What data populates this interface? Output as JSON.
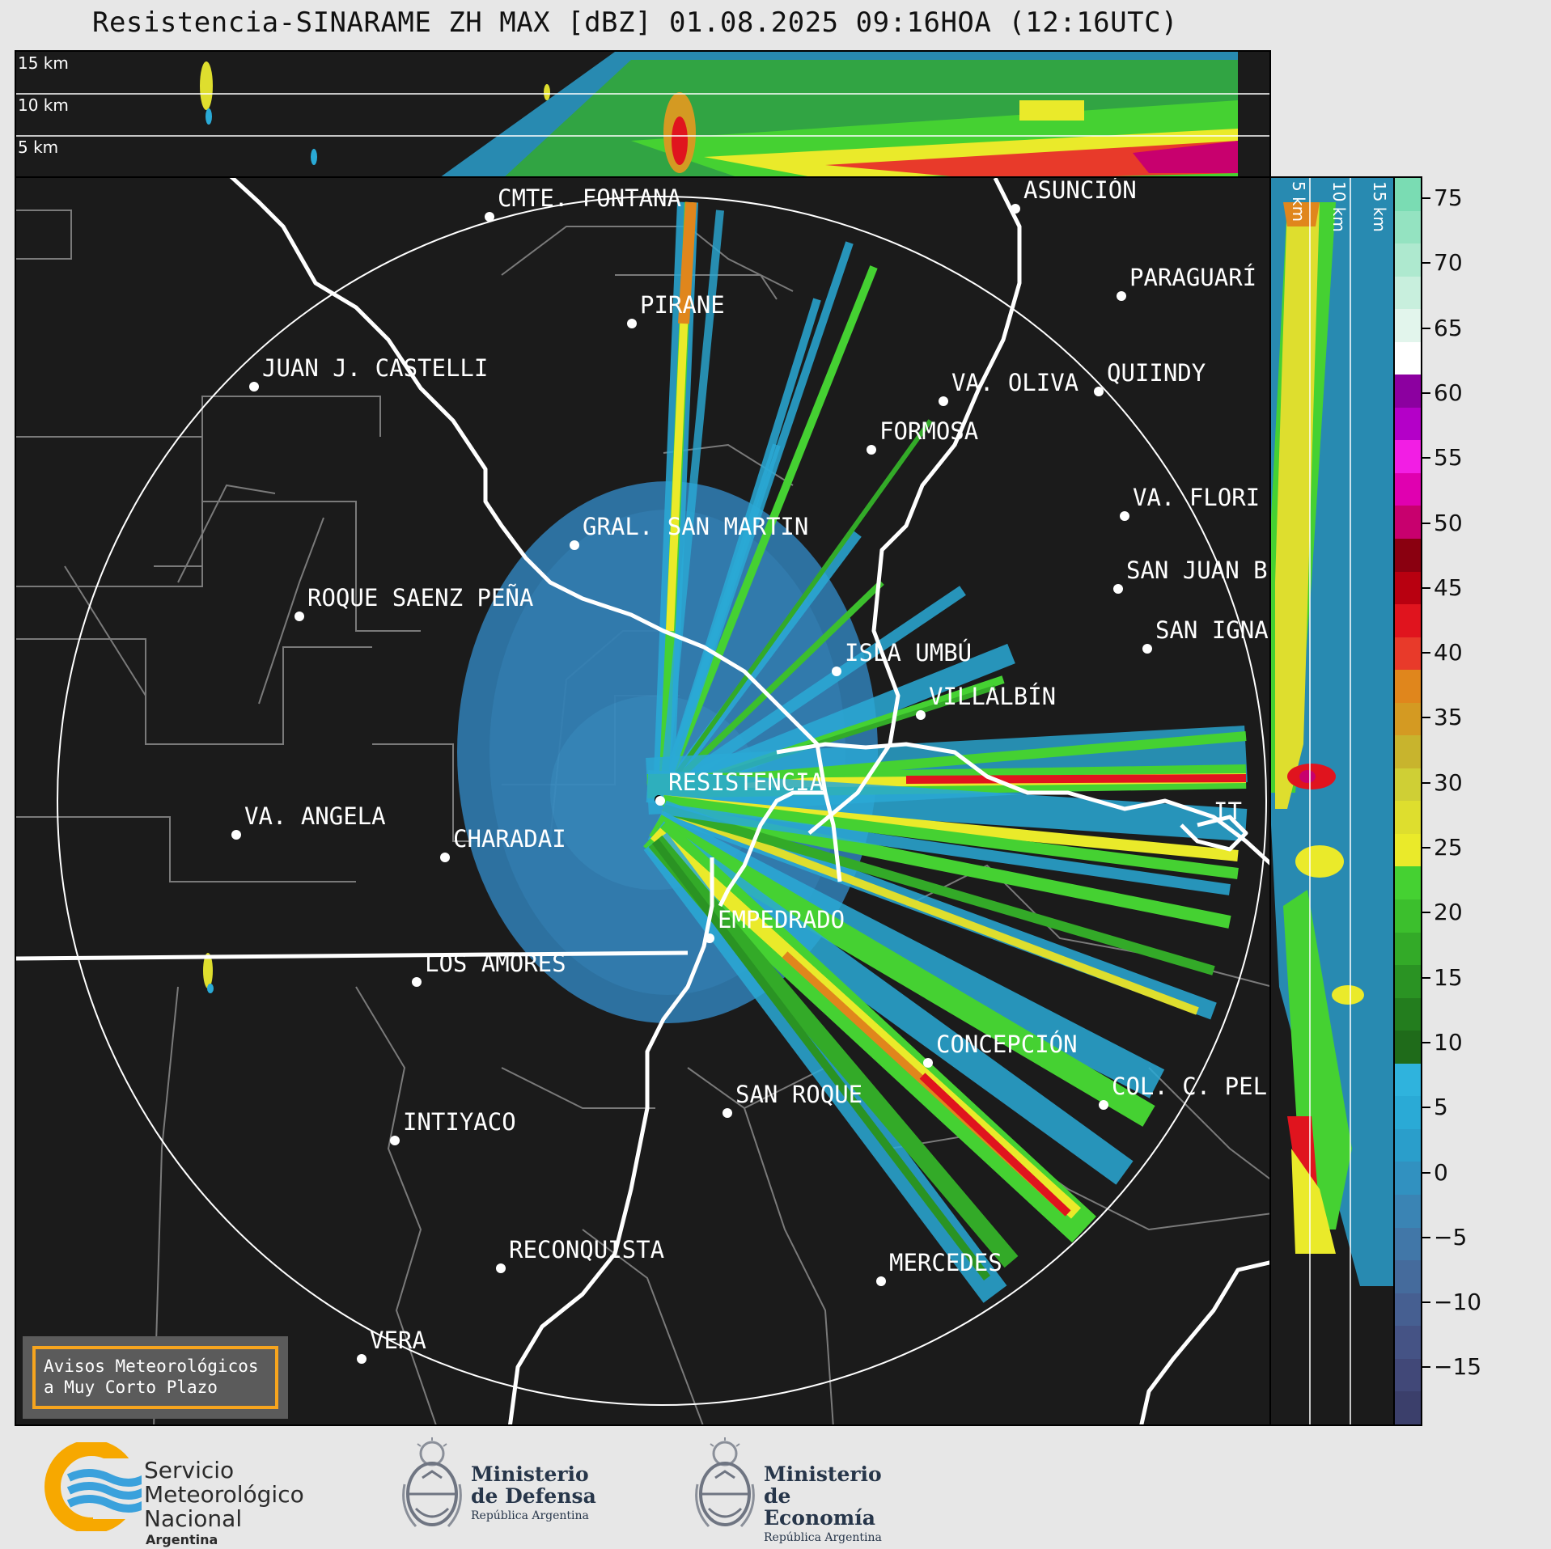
{
  "title": "Resistencia-SINARAME ZH MAX [dBZ] 01.08.2025 09:16HOA (12:16UTC)",
  "top_panel": {
    "height_labels": [
      "15 km",
      "10 km",
      "5 km"
    ]
  },
  "right_panel": {
    "height_labels": [
      "5 km",
      "10 km",
      "15 km"
    ]
  },
  "cities": [
    {
      "name": "CMTE. FONTANA"
    },
    {
      "name": "ASUNCIÓN"
    },
    {
      "name": "PARAGUARÍ"
    },
    {
      "name": "PIRANE"
    },
    {
      "name": "JUAN J. CASTELLI"
    },
    {
      "name": "VA. OLIVA"
    },
    {
      "name": "QUIINDY"
    },
    {
      "name": "FORMOSA"
    },
    {
      "name": "VA. FLORI"
    },
    {
      "name": "GRAL. SAN MARTIN"
    },
    {
      "name": "SAN JUAN B"
    },
    {
      "name": "ROQUE SAENZ PEÑA"
    },
    {
      "name": "SAN IGNA"
    },
    {
      "name": "ISLA UMBÚ"
    },
    {
      "name": "VILLALBÍN"
    },
    {
      "name": "RESISTENCIA"
    },
    {
      "name": "VA. ANGELA"
    },
    {
      "name": "CHARADAI"
    },
    {
      "name": "IT"
    },
    {
      "name": "EMPEDRADO"
    },
    {
      "name": "LOS AMORES"
    },
    {
      "name": "CONCEPCIÓN"
    },
    {
      "name": "COL. C. PEL"
    },
    {
      "name": "SAN ROQUE"
    },
    {
      "name": "INTIYACO"
    },
    {
      "name": "RECONQUISTA"
    },
    {
      "name": "MERCEDES"
    },
    {
      "name": "VERA"
    }
  ],
  "colorbar": {
    "unit": "dBZ",
    "tick_labels": [
      "75",
      "70",
      "65",
      "60",
      "55",
      "50",
      "45",
      "40",
      "35",
      "30",
      "25",
      "20",
      "15",
      "10",
      "5",
      "0",
      "−5",
      "−10",
      "−15"
    ],
    "colors": [
      "#3b3f6b",
      "#414878",
      "#455385",
      "#465f91",
      "#456b9c",
      "#4177a8",
      "#3a84b4",
      "#3191c0",
      "#2a9ecb",
      "#2aaad6",
      "#2fb3dd",
      "#1f6b1a",
      "#237d1e",
      "#2a9323",
      "#33aa28",
      "#3cbf2d",
      "#45d132",
      "#eaea2a",
      "#dede2e",
      "#cfcf35",
      "#c8b42d",
      "#d49a22",
      "#e0861c",
      "#e83a2a",
      "#e0141e",
      "#b80010",
      "#8a0010",
      "#c8006e",
      "#e000b0",
      "#f21ee4",
      "#b400c8",
      "#8c00a0",
      "#ffffff",
      "#e2f5ec",
      "#c8efdd",
      "#aee9cf",
      "#94e3c1",
      "#7adcb3"
    ]
  },
  "alert_box": {
    "line1": "Avisos Meteorológicos",
    "line2": "a Muy Corto Plazo"
  },
  "logos": {
    "smn": {
      "line1": "Servicio",
      "line2": "Meteorológico",
      "line3": "Nacional",
      "line4": "Argentina",
      "colors": [
        "#f7a800",
        "#3aa1dc"
      ]
    },
    "defensa": {
      "line1": "Ministerio",
      "line2": "de Defensa",
      "line3": "República Argentina"
    },
    "economia": {
      "line1": "Ministerio",
      "line2": "de Economía",
      "line3": "República Argentina"
    }
  }
}
